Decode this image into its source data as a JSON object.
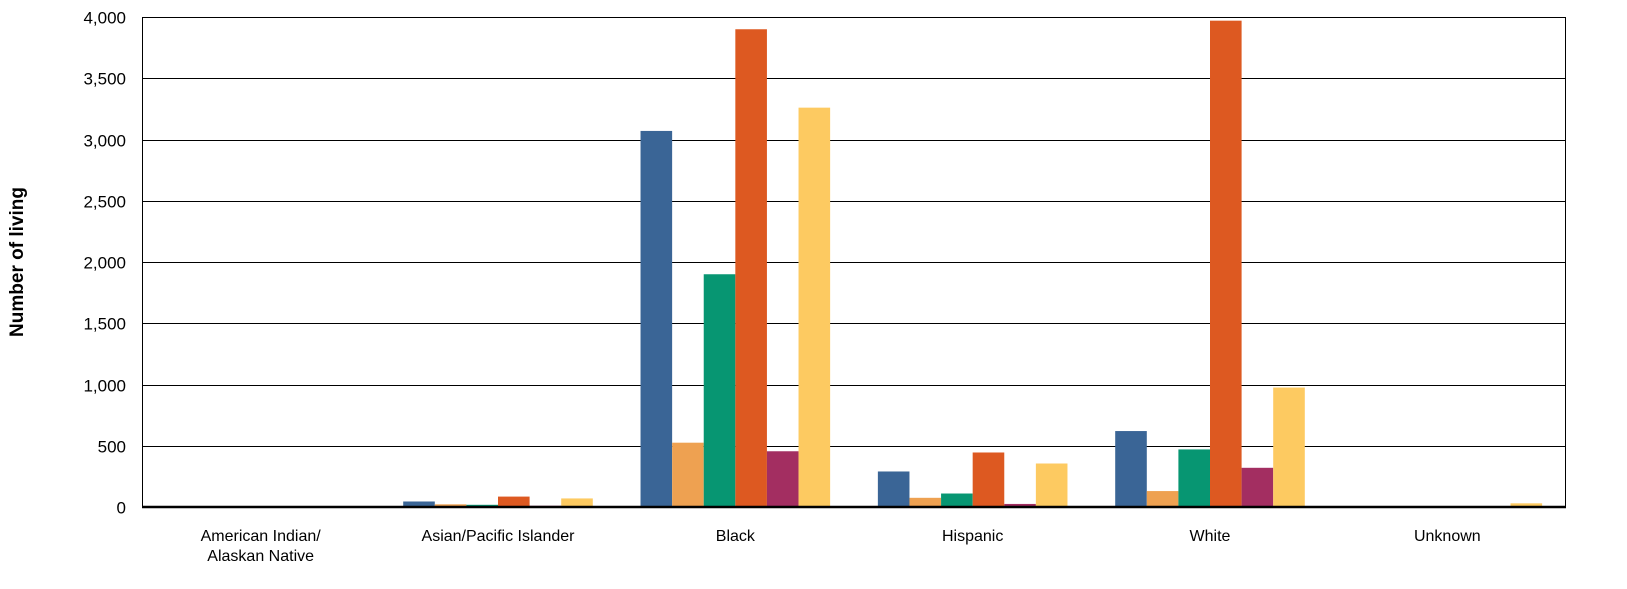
{
  "chart_data": {
    "type": "bar",
    "title": "",
    "xlabel": "",
    "ylabel": "Number of living",
    "ylim": [
      0,
      4000
    ],
    "yticks": [
      0,
      500,
      1000,
      1500,
      2000,
      2500,
      3000,
      3500,
      4000
    ],
    "ytick_labels": [
      "0",
      "500",
      "1,000",
      "1,500",
      "2,000",
      "2,500",
      "3,000",
      "3,500",
      "4,000"
    ],
    "grid": true,
    "legend": "none",
    "categories": [
      [
        "American Indian/",
        "Alaskan Native"
      ],
      [
        "Asian/Pacific Islander"
      ],
      [
        "Black"
      ],
      [
        "Hispanic"
      ],
      [
        "White"
      ],
      [
        "Unknown"
      ]
    ],
    "series": [
      {
        "color": "#3a6596",
        "values": [
          8,
          45,
          3070,
          290,
          620,
          5
        ]
      },
      {
        "color": "#eea151",
        "values": [
          4,
          22,
          525,
          75,
          130,
          5
        ]
      },
      {
        "color": "#079672",
        "values": [
          3,
          18,
          1900,
          110,
          470,
          5
        ]
      },
      {
        "color": "#dd5921",
        "values": [
          6,
          85,
          3900,
          445,
          3970,
          8
        ]
      },
      {
        "color": "#a32e61",
        "values": [
          2,
          10,
          455,
          25,
          320,
          5
        ]
      },
      {
        "color": "#fdca61",
        "values": [
          8,
          70,
          3260,
          355,
          975,
          30
        ]
      }
    ]
  }
}
